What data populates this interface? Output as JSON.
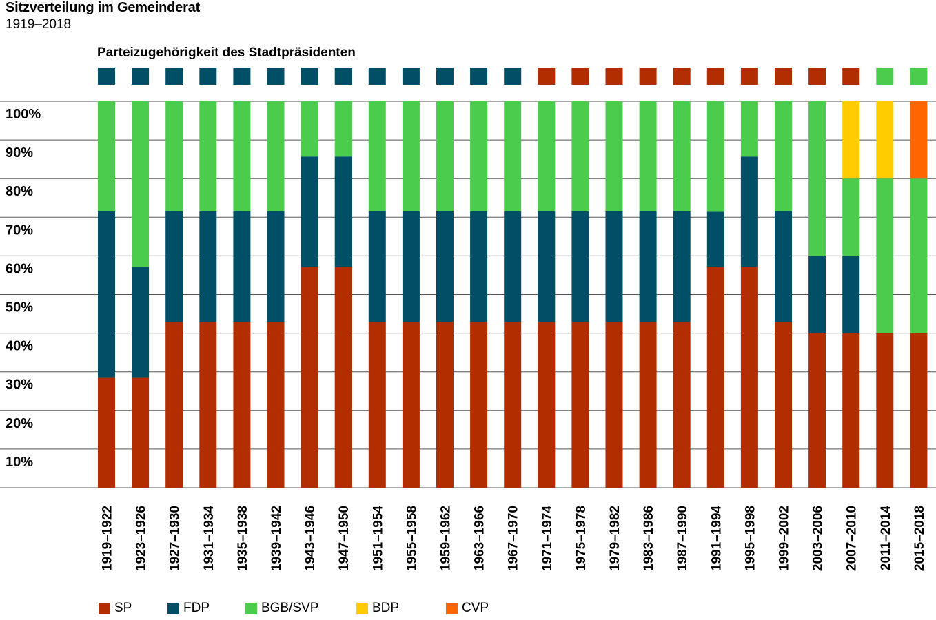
{
  "title": "Sitzverteilung im Gemeinderat",
  "subtitle": "1919–2018",
  "mayor_title": "Parteizugehörigkeit des Stadtpräsidenten",
  "colors": {
    "SP": "#b22e00",
    "FDP": "#004f66",
    "BGB/SVP": "#4ccc4c",
    "BDP": "#ffcc00",
    "CVP": "#ff6600"
  },
  "legend": [
    {
      "name": "SP",
      "color": "#b22e00"
    },
    {
      "name": "FDP",
      "color": "#004f66"
    },
    {
      "name": "BGB/SVP",
      "color": "#4ccc4c"
    },
    {
      "name": "BDP",
      "color": "#ffcc00"
    },
    {
      "name": "CVP",
      "color": "#ff6600"
    }
  ],
  "chart_data": {
    "type": "bar",
    "stacked": true,
    "categories": [
      "1919–1922",
      "1923–1926",
      "1927–1930",
      "1931–1934",
      "1935–1938",
      "1939–1942",
      "1943–1946",
      "1947–1950",
      "1951–1954",
      "1955–1958",
      "1959–1962",
      "1963–1966",
      "1967–1970",
      "1971–1974",
      "1975–1978",
      "1979–1982",
      "1983–1986",
      "1987–1990",
      "1991–1994",
      "1995–1998",
      "1999–2002",
      "2003–2006",
      "2007–2010",
      "2011–2014",
      "2015–2018"
    ],
    "series": [
      {
        "name": "SP",
        "values": [
          28.6,
          28.6,
          42.9,
          42.9,
          42.9,
          42.9,
          57.1,
          57.1,
          42.9,
          42.9,
          42.9,
          42.9,
          42.9,
          42.9,
          42.9,
          42.9,
          42.9,
          42.9,
          57.1,
          57.1,
          42.9,
          40,
          40,
          40,
          40
        ]
      },
      {
        "name": "FDP",
        "values": [
          42.9,
          28.6,
          28.6,
          28.6,
          28.6,
          28.6,
          28.6,
          28.6,
          28.6,
          28.6,
          28.6,
          28.6,
          28.6,
          28.6,
          28.6,
          28.6,
          28.6,
          28.6,
          14.3,
          28.6,
          28.6,
          20,
          20,
          0,
          0
        ]
      },
      {
        "name": "BGB/SVP",
        "values": [
          28.5,
          42.8,
          28.5,
          28.5,
          28.5,
          28.5,
          14.3,
          14.3,
          28.5,
          28.5,
          28.5,
          28.5,
          28.5,
          28.5,
          28.5,
          28.5,
          28.5,
          28.5,
          28.6,
          14.3,
          28.5,
          40,
          20,
          40,
          40
        ]
      },
      {
        "name": "BDP",
        "values": [
          0,
          0,
          0,
          0,
          0,
          0,
          0,
          0,
          0,
          0,
          0,
          0,
          0,
          0,
          0,
          0,
          0,
          0,
          0,
          0,
          0,
          0,
          20,
          20,
          0
        ]
      },
      {
        "name": "CVP",
        "values": [
          0,
          0,
          0,
          0,
          0,
          0,
          0,
          0,
          0,
          0,
          0,
          0,
          0,
          0,
          0,
          0,
          0,
          0,
          0,
          0,
          0,
          0,
          0,
          0,
          20
        ]
      }
    ],
    "mayor_party": [
      "FDP",
      "FDP",
      "FDP",
      "FDP",
      "FDP",
      "FDP",
      "FDP",
      "FDP",
      "FDP",
      "FDP",
      "FDP",
      "FDP",
      "FDP",
      "SP",
      "SP",
      "SP",
      "SP",
      "SP",
      "SP",
      "SP",
      "SP",
      "SP",
      "SP",
      "BGB/SVP",
      "BGB/SVP"
    ],
    "yticks": [
      {
        "value": 10,
        "label": "10%"
      },
      {
        "value": 20,
        "label": "20%"
      },
      {
        "value": 30,
        "label": "30%"
      },
      {
        "value": 40,
        "label": "40%"
      },
      {
        "value": 50,
        "label": "50%"
      },
      {
        "value": 60,
        "label": "60%"
      },
      {
        "value": 70,
        "label": "70%"
      },
      {
        "value": 80,
        "label": "80%"
      },
      {
        "value": 90,
        "label": "90%"
      },
      {
        "value": 100,
        "label": "100%"
      }
    ],
    "ylim": [
      0,
      100
    ],
    "grid": true,
    "legend_position": "bottom"
  }
}
